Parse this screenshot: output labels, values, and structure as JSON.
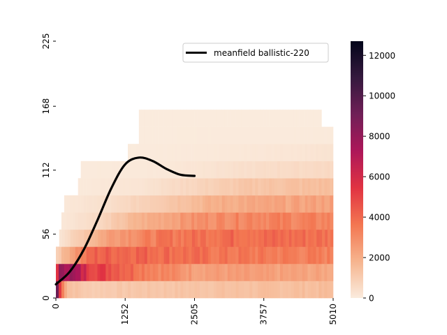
{
  "chart_data": {
    "type": "heatmap",
    "title": "",
    "xlabel": "",
    "ylabel": "",
    "x_tick_labels": [
      "0",
      "1252",
      "2505",
      "3757",
      "5010"
    ],
    "x_ticks": [
      0,
      1252,
      2505,
      3757,
      5010
    ],
    "y_tick_labels": [
      "0",
      "56",
      "112",
      "168",
      "225"
    ],
    "y_ticks": [
      0,
      56,
      112,
      168,
      225
    ],
    "xlim": [
      0,
      5010
    ],
    "ylim": [
      0,
      225
    ],
    "colorbar": {
      "min": 0,
      "max": 12700,
      "ticks": [
        0,
        2000,
        4000,
        6000,
        8000,
        10000,
        12000
      ],
      "tick_labels": [
        "0",
        "2000",
        "4000",
        "6000",
        "8000",
        "10000",
        "12000"
      ],
      "colormap": "rocket_r",
      "stops": [
        "#faebdd",
        "#f6b48e",
        "#f37651",
        "#e13342",
        "#ad1759",
        "#701f57",
        "#35193e",
        "#03051a"
      ]
    },
    "heatmap_bands": [
      {
        "y_range": [
          0,
          15
        ],
        "x_extent": [
          0,
          5010
        ],
        "profile": [
          [
            0,
            12500
          ],
          [
            50,
            6000
          ],
          [
            200,
            1500
          ],
          [
            600,
            1000
          ],
          [
            1500,
            1200
          ],
          [
            5010,
            1500
          ]
        ]
      },
      {
        "y_range": [
          15,
          30
        ],
        "x_extent": [
          0,
          5010
        ],
        "profile": [
          [
            0,
            4000
          ],
          [
            100,
            8500
          ],
          [
            300,
            7500
          ],
          [
            600,
            5500
          ],
          [
            1000,
            4800
          ],
          [
            1600,
            3600
          ],
          [
            2500,
            2500
          ],
          [
            5010,
            2200
          ]
        ]
      },
      {
        "y_range": [
          30,
          45
        ],
        "x_extent": [
          0,
          5010
        ],
        "profile": [
          [
            0,
            800
          ],
          [
            300,
            2500
          ],
          [
            700,
            4200
          ],
          [
            1500,
            4200
          ],
          [
            3000,
            3600
          ],
          [
            5010,
            3300
          ]
        ]
      },
      {
        "y_range": [
          45,
          60
        ],
        "x_extent": [
          60,
          5010
        ],
        "profile": [
          [
            60,
            200
          ],
          [
            500,
            1200
          ],
          [
            1000,
            2600
          ],
          [
            2000,
            3600
          ],
          [
            3200,
            4000
          ],
          [
            5010,
            3800
          ]
        ]
      },
      {
        "y_range": [
          60,
          75
        ],
        "x_extent": [
          100,
          5010
        ],
        "profile": [
          [
            100,
            100
          ],
          [
            800,
            600
          ],
          [
            1500,
            1800
          ],
          [
            2500,
            2800
          ],
          [
            3500,
            3300
          ],
          [
            5010,
            3200
          ]
        ]
      },
      {
        "y_range": [
          75,
          90
        ],
        "x_extent": [
          150,
          5010
        ],
        "profile": [
          [
            150,
            100
          ],
          [
            1000,
            400
          ],
          [
            2000,
            1200
          ],
          [
            3000,
            2000
          ],
          [
            5010,
            2400
          ]
        ]
      },
      {
        "y_range": [
          90,
          105
        ],
        "x_extent": [
          400,
          5010
        ],
        "profile": [
          [
            400,
            50
          ],
          [
            1500,
            200
          ],
          [
            2500,
            700
          ],
          [
            3500,
            1200
          ],
          [
            5010,
            1500
          ]
        ]
      },
      {
        "y_range": [
          105,
          120
        ],
        "x_extent": [
          450,
          5010
        ],
        "profile": [
          [
            450,
            20
          ],
          [
            2000,
            100
          ],
          [
            3000,
            300
          ],
          [
            4000,
            500
          ],
          [
            5010,
            600
          ]
        ]
      },
      {
        "y_range": [
          120,
          135
        ],
        "x_extent": [
          1300,
          5010
        ],
        "profile": [
          [
            1300,
            10
          ],
          [
            3000,
            80
          ],
          [
            5010,
            250
          ]
        ]
      },
      {
        "y_range": [
          135,
          150
        ],
        "x_extent": [
          1500,
          5010
        ],
        "profile": [
          [
            1500,
            5
          ],
          [
            5010,
            40
          ]
        ]
      },
      {
        "y_range": [
          150,
          165
        ],
        "x_extent": [
          1500,
          4800
        ],
        "profile": [
          [
            1500,
            3
          ],
          [
            4800,
            10
          ]
        ]
      }
    ],
    "series": [
      {
        "name": "meanfield ballistic-220",
        "color": "#000000",
        "x": [
          0,
          250,
          500,
          750,
          1000,
          1250,
          1500,
          1750,
          2000,
          2250,
          2505
        ],
        "y": [
          12,
          23,
          42,
          68,
          96,
          117,
          123,
          120,
          113,
          108,
          107
        ]
      }
    ],
    "legend": {
      "location": "upper right",
      "entries": [
        "meanfield ballistic-220"
      ]
    }
  }
}
